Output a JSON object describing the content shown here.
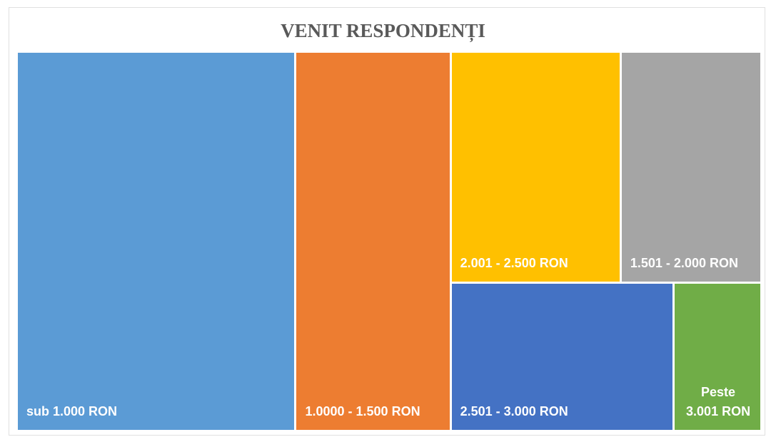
{
  "chart_data": {
    "type": "treemap",
    "title": "VENIT RESPONDENȚI",
    "categories": [
      "sub 1.000 RON",
      "1.0000 - 1.500 RON",
      "2.001 - 2.500 RON",
      "1.501 - 2.000 RON",
      "2.501 - 3.000 RON",
      "Peste 3.001 RON"
    ],
    "values": [
      37.4,
      20.8,
      13.9,
      11.5,
      11.7,
      4.6
    ],
    "colors": [
      "#5b9bd5",
      "#ed7d31",
      "#ffc000",
      "#a5a5a5",
      "#4472c4",
      "#70ad47"
    ]
  }
}
